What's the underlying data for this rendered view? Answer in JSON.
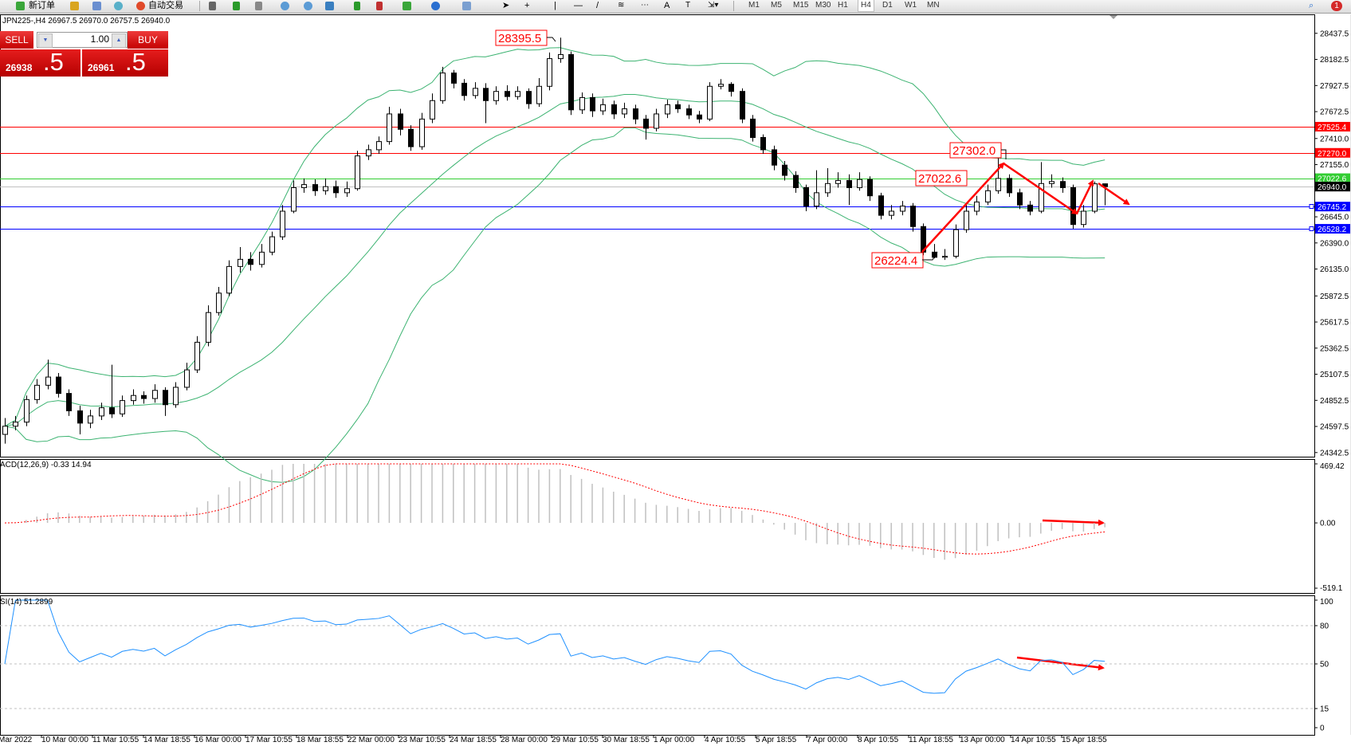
{
  "toolbar": {
    "new_order": "新订单",
    "auto_trading": "自动交易",
    "timeframes": [
      "M1",
      "M5",
      "M15",
      "M30",
      "H1",
      "H4",
      "D1",
      "W1",
      "MN"
    ],
    "active_timeframe": "H4",
    "notification_count": "1"
  },
  "chart_header": {
    "title": "JPN225-,H4  26967.5 26970.0 26757.5 26940.0"
  },
  "trade_panel": {
    "sell_label": "SELL",
    "buy_label": "BUY",
    "lot_value": "1.00",
    "bid_main": "26938",
    "bid_pips": ".5",
    "ask_main": "26961",
    "ask_pips": ".5"
  },
  "colors": {
    "candle": "#000000",
    "bollinger": "#3cb371",
    "resistance": "#ff0000",
    "support": "#0000ff",
    "level_green": "#32cd32",
    "current_price": "#c0c0c0",
    "macd_hist": "#c0c0c0",
    "macd_signal": "#ff0000",
    "rsi": "#1e90ff",
    "annotation": "#ff0000"
  },
  "price_axis": {
    "labels": [
      "28437.5",
      "28182.5",
      "27927.5",
      "27672.5",
      "27410.0",
      "27155.0",
      "26645.0",
      "26390.0",
      "26135.0",
      "25872.5",
      "25617.5",
      "25362.5",
      "25107.5",
      "24852.5",
      "24597.5",
      "24342.5"
    ],
    "price_tags": [
      {
        "value": "27525.4",
        "color": "#ff0000"
      },
      {
        "value": "27270.0",
        "color": "#ff0000"
      },
      {
        "value": "27022.6",
        "color": "#32cd32"
      },
      {
        "value": "26940.0",
        "color": "#000000"
      },
      {
        "value": "26745.2",
        "color": "#0000ff"
      },
      {
        "value": "26528.2",
        "color": "#0000ff"
      }
    ]
  },
  "horizontal_lines": [
    {
      "price": 27525.4,
      "color": "#ff0000"
    },
    {
      "price": 27270.0,
      "color": "#ff0000"
    },
    {
      "price": 27022.6,
      "color": "#32cd32"
    },
    {
      "price": 26940.0,
      "color": "#c0c0c0"
    },
    {
      "price": 26745.2,
      "color": "#0000ff"
    },
    {
      "price": 26528.2,
      "color": "#0000ff"
    }
  ],
  "annotations": [
    "28395.5",
    "27302.0",
    "27022.6",
    "26224.4"
  ],
  "time_axis": {
    "labels": [
      "Mar 2022",
      "10 Mar 00:00",
      "11 Mar 10:55",
      "14 Mar 18:55",
      "16 Mar 00:00",
      "17 Mar 10:55",
      "18 Mar 18:55",
      "22 Mar 00:00",
      "23 Mar 10:55",
      "24 Mar 18:55",
      "28 Mar 00:00",
      "29 Mar 10:55",
      "30 Mar 18:55",
      "1 Apr 00:00",
      "4 Apr 10:55",
      "5 Apr 18:55",
      "7 Apr 00:00",
      "8 Apr 10:55",
      "11 Apr 18:55",
      "13 Apr 00:00",
      "14 Apr 10:55",
      "15 Apr 18:55"
    ]
  },
  "macd": {
    "label": "ACD(12,26,9) -0.33 14.94",
    "fast": 12,
    "slow": 26,
    "signal": 9,
    "axis_labels": [
      "469.42",
      "0.00",
      "-519.1"
    ],
    "range": [
      -519.1,
      469.42
    ]
  },
  "rsi": {
    "label": "SI(14) 51.2899",
    "period": 14,
    "levels": [
      80,
      50,
      15
    ],
    "axis_labels": [
      "100",
      "80",
      "50",
      "15",
      "0"
    ]
  },
  "chart_data": {
    "type": "candlestick",
    "symbol": "JPN225-",
    "timeframe": "H4",
    "ylim": [
      24342.5,
      28437.5
    ],
    "open": [
      24520,
      24600,
      24640,
      24860,
      25000,
      25080,
      24920,
      24750,
      24630,
      24700,
      24780,
      24720,
      24850,
      24900,
      24870,
      24950,
      24810,
      24980,
      25150,
      25420,
      25710,
      25900,
      26160,
      26230,
      26180,
      26300,
      26450,
      26700,
      26930,
      26960,
      26900,
      26940,
      26880,
      26920,
      27240,
      27300,
      27380,
      27650,
      27500,
      27330,
      27600,
      27780,
      28050,
      27950,
      27830,
      27900,
      27780,
      27870,
      27820,
      27870,
      27750,
      27920,
      28190,
      28230,
      27690,
      27810,
      27680,
      27740,
      27650,
      27700,
      27600,
      27510,
      27650,
      27740,
      27700,
      27640,
      27600,
      27920,
      27940,
      27870,
      27600,
      27420,
      27300,
      27150,
      27050,
      26930,
      26750,
      26880,
      26970,
      27000,
      26930,
      27010,
      26850,
      26660,
      26700,
      26750,
      26550,
      26300,
      26250,
      26260,
      26520,
      26700,
      26790,
      26900,
      27020,
      26880,
      26760,
      26700,
      26970,
      26990,
      26930,
      26570,
      26700,
      26967.5
    ],
    "high": [
      24680,
      24700,
      24900,
      25060,
      25250,
      25120,
      24960,
      24800,
      24760,
      24830,
      25200,
      24900,
      24960,
      24940,
      25010,
      24980,
      25030,
      25220,
      25480,
      25780,
      25960,
      26220,
      26350,
      26300,
      26380,
      26500,
      26760,
      27000,
      27020,
      27010,
      27020,
      27000,
      26990,
      27290,
      27350,
      27430,
      27720,
      27700,
      27540,
      27660,
      27850,
      28110,
      28080,
      27990,
      27960,
      27950,
      27920,
      27930,
      27920,
      27900,
      28000,
      28250,
      28395.5,
      28260,
      27860,
      27850,
      27800,
      27780,
      27760,
      27740,
      27640,
      27700,
      27790,
      27780,
      27740,
      27680,
      27960,
      27990,
      27960,
      27900,
      27640,
      27450,
      27340,
      27190,
      27090,
      26960,
      27100,
      27120,
      27080,
      27060,
      27080,
      27040,
      26880,
      26760,
      26800,
      26780,
      26580,
      26380,
      26330,
      26570,
      26760,
      26850,
      26960,
      27302.0,
      27060,
      26920,
      26800,
      27180,
      27060,
      27030,
      26960,
      26760,
      26990,
      26970
    ],
    "low": [
      24430,
      24560,
      24600,
      24820,
      24960,
      24880,
      24700,
      24520,
      24580,
      24660,
      24680,
      24690,
      24810,
      24820,
      24830,
      24700,
      24780,
      24950,
      25120,
      25380,
      25680,
      25870,
      26100,
      26120,
      26150,
      26270,
      26420,
      26680,
      26880,
      26850,
      26860,
      26830,
      26840,
      26900,
      27200,
      27260,
      27350,
      27440,
      27290,
      27300,
      27560,
      27750,
      27900,
      27780,
      27800,
      27560,
      27740,
      27780,
      27790,
      27700,
      27720,
      27880,
      28150,
      27640,
      27650,
      27620,
      27640,
      27600,
      27610,
      27550,
      27400,
      27480,
      27610,
      27660,
      27600,
      27560,
      27580,
      27890,
      27820,
      27560,
      27380,
      27260,
      27100,
      27000,
      26880,
      26700,
      26720,
      26840,
      26930,
      26760,
      26900,
      26800,
      26620,
      26620,
      26660,
      26500,
      26270,
      26240,
      26224.4,
      26240,
      26490,
      26660,
      26760,
      26870,
      26840,
      26720,
      26660,
      26680,
      26930,
      26880,
      26530,
      26540,
      26680,
      26757.5
    ],
    "close": [
      24600,
      24640,
      24860,
      25000,
      25080,
      24920,
      24750,
      24630,
      24700,
      24780,
      24720,
      24850,
      24900,
      24870,
      24950,
      24810,
      24980,
      25150,
      25420,
      25710,
      25900,
      26160,
      26230,
      26180,
      26300,
      26450,
      26700,
      26930,
      26960,
      26900,
      26940,
      26880,
      26920,
      27240,
      27300,
      27380,
      27650,
      27500,
      27330,
      27600,
      27780,
      28050,
      27950,
      27830,
      27900,
      27780,
      27870,
      27820,
      27870,
      27750,
      27920,
      28190,
      28230,
      27690,
      27810,
      27680,
      27740,
      27650,
      27700,
      27600,
      27510,
      27650,
      27740,
      27700,
      27640,
      27600,
      27920,
      27940,
      27870,
      27600,
      27420,
      27300,
      27150,
      27050,
      26930,
      26750,
      26880,
      26970,
      27000,
      26930,
      27010,
      26850,
      26660,
      26700,
      26750,
      26550,
      26300,
      26250,
      26260,
      26520,
      26700,
      26790,
      26900,
      27020,
      26880,
      26760,
      26700,
      26970,
      26990,
      26930,
      26570,
      26700,
      26967.5,
      26940
    ]
  }
}
